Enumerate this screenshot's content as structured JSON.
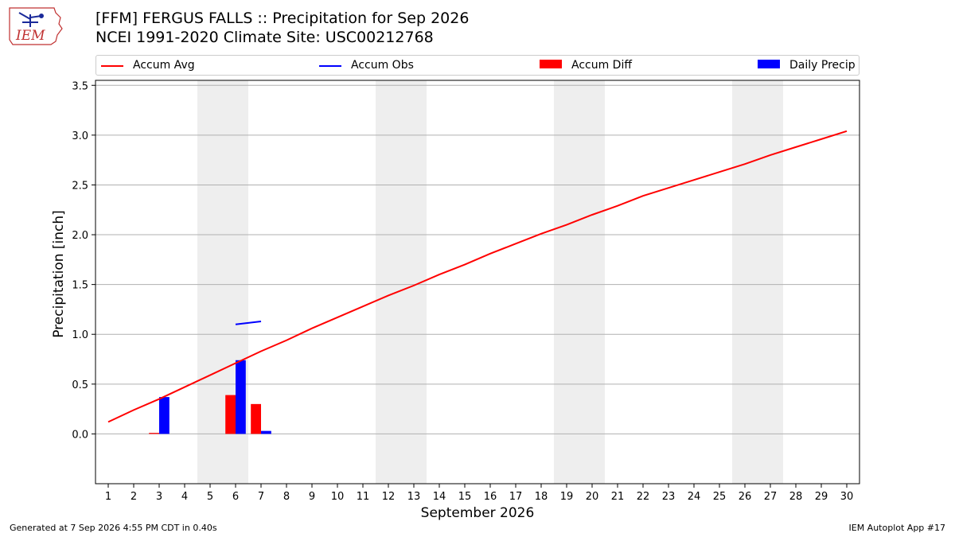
{
  "header": {
    "title_line1": "[FFM] FERGUS FALLS :: Precipitation for Sep 2026",
    "title_line2": "NCEI 1991-2020 Climate Site: USC00212768",
    "logo_text": "IEM"
  },
  "legend": {
    "items": [
      {
        "label": "Accum Avg",
        "kind": "line",
        "color": "#ff0000"
      },
      {
        "label": "Accum Obs",
        "kind": "line",
        "color": "#0000ff"
      },
      {
        "label": "Accum Diff",
        "kind": "box",
        "color": "#ff0000"
      },
      {
        "label": "Daily Precip",
        "kind": "box",
        "color": "#0000ff"
      }
    ]
  },
  "footer": {
    "left": "Generated at 7 Sep 2026 4:55 PM CDT in 0.40s",
    "right": "IEM Autoplot App #17"
  },
  "colors": {
    "accum_avg": "#ff0000",
    "accum_obs": "#0000ff",
    "accum_diff": "#ff0000",
    "daily_precip": "#0000ff",
    "weekend_shade": "#eeeeee",
    "grid": "#b0b0b0"
  },
  "chart_data": {
    "type": "line",
    "xlabel": "September 2026",
    "ylabel": "Precipitation [inch]",
    "xlim": [
      0.5,
      30.5
    ],
    "ylim": [
      -0.5,
      3.55
    ],
    "x_ticks": [
      1,
      2,
      3,
      4,
      5,
      6,
      7,
      8,
      9,
      10,
      11,
      12,
      13,
      14,
      15,
      16,
      17,
      18,
      19,
      20,
      21,
      22,
      23,
      24,
      25,
      26,
      27,
      28,
      29,
      30
    ],
    "y_ticks": [
      0.0,
      0.5,
      1.0,
      1.5,
      2.0,
      2.5,
      3.0,
      3.5
    ],
    "y_tick_labels": [
      "0.0",
      "0.5",
      "1.0",
      "1.5",
      "2.0",
      "2.5",
      "3.0",
      "3.5"
    ],
    "grid": "horizontal",
    "legend_position": "top",
    "weekend_days": [
      [
        5,
        6
      ],
      [
        12,
        13
      ],
      [
        19,
        20
      ],
      [
        26,
        27
      ]
    ],
    "series": [
      {
        "name": "Accum Avg",
        "kind": "line",
        "x": [
          1,
          2,
          3,
          4,
          5,
          6,
          7,
          8,
          9,
          10,
          11,
          12,
          13,
          14,
          15,
          16,
          17,
          18,
          19,
          20,
          21,
          22,
          23,
          24,
          25,
          26,
          27,
          28,
          29,
          30
        ],
        "values": [
          0.12,
          0.24,
          0.35,
          0.47,
          0.59,
          0.71,
          0.83,
          0.94,
          1.06,
          1.17,
          1.28,
          1.39,
          1.49,
          1.6,
          1.7,
          1.81,
          1.91,
          2.01,
          2.1,
          2.2,
          2.29,
          2.39,
          2.47,
          2.55,
          2.63,
          2.71,
          2.8,
          2.88,
          2.96,
          3.04
        ]
      },
      {
        "name": "Accum Obs",
        "kind": "line",
        "x": [
          6,
          7
        ],
        "values": [
          1.1,
          1.13
        ]
      },
      {
        "name": "Accum Diff",
        "kind": "bar",
        "x": [
          3,
          6,
          7
        ],
        "values": [
          0.01,
          0.39,
          0.3
        ]
      },
      {
        "name": "Daily Precip",
        "kind": "bar",
        "x": [
          3,
          6,
          7
        ],
        "values": [
          0.37,
          0.74,
          0.03
        ]
      }
    ]
  }
}
